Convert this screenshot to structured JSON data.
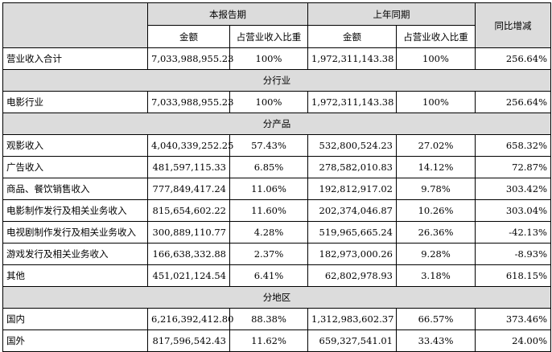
{
  "header": {
    "current_period": "本报告期",
    "prior_period": "上年同期",
    "yoy_change": "同比增减",
    "amount": "金额",
    "share": "占营业收入比重"
  },
  "total": {
    "label": "营业收入合计",
    "cur_amount": "7,033,988,955.23",
    "cur_share": "100%",
    "prior_amount": "1,972,311,143.38",
    "prior_share": "100%",
    "yoy": "256.64%"
  },
  "sections": [
    {
      "title": "分行业",
      "rows": [
        {
          "label": "电影行业",
          "cur_amount": "7,033,988,955.23",
          "cur_share": "100%",
          "prior_amount": "1,972,311,143.38",
          "prior_share": "100%",
          "yoy": "256.64%"
        }
      ]
    },
    {
      "title": "分产品",
      "rows": [
        {
          "label": "观影收入",
          "cur_amount": "4,040,339,252.25",
          "cur_share": "57.43%",
          "prior_amount": "532,800,524.23",
          "prior_share": "27.02%",
          "yoy": "658.32%"
        },
        {
          "label": "广告收入",
          "cur_amount": "481,597,115.33",
          "cur_share": "6.85%",
          "prior_amount": "278,582,010.83",
          "prior_share": "14.12%",
          "yoy": "72.87%"
        },
        {
          "label": "商品、餐饮销售收入",
          "cur_amount": "777,849,417.24",
          "cur_share": "11.06%",
          "prior_amount": "192,812,917.02",
          "prior_share": "9.78%",
          "yoy": "303.42%"
        },
        {
          "label": "电影制作发行及相关业务收入",
          "cur_amount": "815,654,602.22",
          "cur_share": "11.60%",
          "prior_amount": "202,374,046.87",
          "prior_share": "10.26%",
          "yoy": "303.04%"
        },
        {
          "label": "电视剧制作发行及相关业务收入",
          "cur_amount": "300,889,110.77",
          "cur_share": "4.28%",
          "prior_amount": "519,965,665.24",
          "prior_share": "26.36%",
          "yoy": "-42.13%"
        },
        {
          "label": "游戏发行及相关业务收入",
          "cur_amount": "166,638,332.88",
          "cur_share": "2.37%",
          "prior_amount": "182,973,000.26",
          "prior_share": "9.28%",
          "yoy": "-8.93%"
        },
        {
          "label": "其他",
          "cur_amount": "451,021,124.54",
          "cur_share": "6.41%",
          "prior_amount": "62,802,978.93",
          "prior_share": "3.18%",
          "yoy": "618.15%"
        }
      ]
    },
    {
      "title": "分地区",
      "rows": [
        {
          "label": "国内",
          "cur_amount": "6,216,392,412.80",
          "cur_share": "88.38%",
          "prior_amount": "1,312,983,602.37",
          "prior_share": "66.57%",
          "yoy": "373.46%"
        },
        {
          "label": "国外",
          "cur_amount": "817,596,542.43",
          "cur_share": "11.62%",
          "prior_amount": "659,327,541.01",
          "prior_share": "33.43%",
          "yoy": "24.00%"
        }
      ]
    }
  ]
}
